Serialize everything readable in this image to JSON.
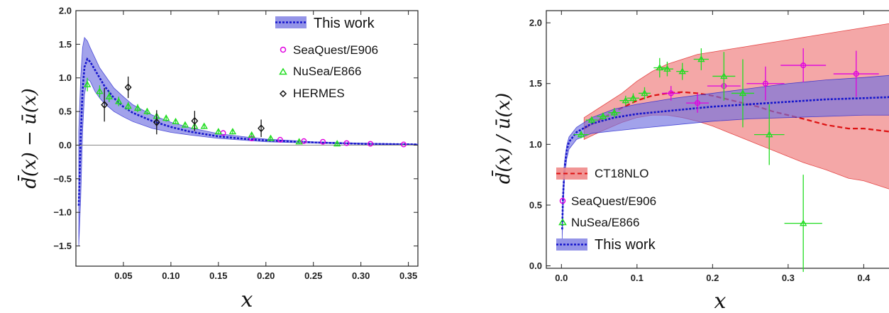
{
  "colors": {
    "band": "#7070e0",
    "line": "#1515cc",
    "ct18_band": "#f08a8a",
    "ct18_line": "#dd1111",
    "seaquest": "#e000e0",
    "nusea": "#22dd22",
    "hermes": "#111111",
    "zero": "#888888"
  },
  "chart_data": [
    {
      "type": "line",
      "xlabel": "x",
      "ylabel": "d̄(x) − ū(x)",
      "xlim": [
        0.0,
        0.36
      ],
      "ylim": [
        -1.8,
        2.0
      ],
      "xticks": [
        "0.05",
        "0.10",
        "0.15",
        "0.20",
        "0.25",
        "0.30",
        "0.35"
      ],
      "yticks": [
        "2.0",
        "1.5",
        "1.0",
        "0.5",
        "0.0",
        "−0.5",
        "−1.0",
        "−1.5"
      ],
      "legend_position": "top-right",
      "legend": [
        {
          "label": "This work",
          "marker": "band-line"
        },
        {
          "label": "SeaQuest/E906",
          "marker": "circle"
        },
        {
          "label": "NuSea/E866",
          "marker": "triangle"
        },
        {
          "label": "HERMES",
          "marker": "diamond"
        }
      ],
      "series": [
        {
          "name": "This work",
          "kind": "band",
          "x": [
            0.003,
            0.005,
            0.007,
            0.009,
            0.012,
            0.015,
            0.02,
            0.025,
            0.03,
            0.04,
            0.05,
            0.06,
            0.08,
            0.1,
            0.12,
            0.15,
            0.18,
            0.2,
            0.25,
            0.3,
            0.36
          ],
          "y": [
            -0.9,
            0.1,
            0.82,
            1.16,
            1.28,
            1.24,
            1.12,
            1.0,
            0.88,
            0.7,
            0.57,
            0.48,
            0.36,
            0.27,
            0.2,
            0.13,
            0.09,
            0.07,
            0.04,
            0.02,
            0.01
          ],
          "low": [
            -1.5,
            -0.8,
            0.2,
            0.75,
            0.98,
            0.95,
            0.8,
            0.7,
            0.62,
            0.5,
            0.42,
            0.35,
            0.25,
            0.19,
            0.15,
            0.1,
            0.07,
            0.05,
            0.03,
            0.015,
            0.005
          ],
          "high": [
            0.2,
            1.0,
            1.45,
            1.6,
            1.55,
            1.45,
            1.3,
            1.15,
            1.05,
            0.85,
            0.72,
            0.6,
            0.45,
            0.34,
            0.26,
            0.17,
            0.12,
            0.09,
            0.05,
            0.03,
            0.015
          ]
        },
        {
          "name": "SeaQuest/E906",
          "kind": "points",
          "marker": "circle",
          "x": [
            0.155,
            0.185,
            0.215,
            0.24,
            0.26,
            0.285,
            0.31,
            0.345
          ],
          "y": [
            0.18,
            0.1,
            0.08,
            0.06,
            0.05,
            0.03,
            0.02,
            0.01
          ]
        },
        {
          "name": "NuSea/E866",
          "kind": "points",
          "marker": "triangle",
          "x": [
            0.012,
            0.025,
            0.035,
            0.045,
            0.055,
            0.065,
            0.075,
            0.085,
            0.095,
            0.105,
            0.115,
            0.125,
            0.135,
            0.15,
            0.165,
            0.185,
            0.205,
            0.235,
            0.275
          ],
          "y": [
            0.9,
            0.8,
            0.72,
            0.65,
            0.58,
            0.55,
            0.5,
            0.43,
            0.4,
            0.35,
            0.3,
            0.28,
            0.28,
            0.2,
            0.2,
            0.15,
            0.1,
            0.05,
            0.02
          ],
          "err": [
            0.1,
            0.09,
            0.08,
            0.07,
            0.06,
            0.06,
            0.05,
            0.05,
            0.05,
            0.04,
            0.04,
            0.04,
            0.04,
            0.04,
            0.04,
            0.04,
            0.03,
            0.03,
            0.03
          ]
        },
        {
          "name": "HERMES",
          "kind": "points",
          "marker": "diamond",
          "x": [
            0.03,
            0.055,
            0.085,
            0.125,
            0.195
          ],
          "y": [
            0.6,
            0.86,
            0.34,
            0.36,
            0.25
          ],
          "err": [
            0.25,
            0.16,
            0.18,
            0.15,
            0.13
          ]
        }
      ]
    },
    {
      "type": "line",
      "xlabel": "x",
      "ylabel": "d̄(x) / ū(x)",
      "xlim": [
        -0.02,
        0.44
      ],
      "ylim": [
        -0.02,
        2.1
      ],
      "xticks": [
        "0.0",
        "0.1",
        "0.2",
        "0.3",
        "0.4"
      ],
      "yticks": [
        "0.0",
        "0.5",
        "1.0",
        "1.5",
        "2.0"
      ],
      "legend_position": "bottom-left",
      "legend": [
        {
          "label": "CT18NLO",
          "marker": "band-dash"
        },
        {
          "label": "SeaQuest/E906",
          "marker": "circle"
        },
        {
          "label": "NuSea/E866",
          "marker": "triangle"
        },
        {
          "label": "This work",
          "marker": "band-line"
        }
      ],
      "series": [
        {
          "name": "CT18NLO",
          "kind": "band",
          "x": [
            0.03,
            0.05,
            0.08,
            0.1,
            0.12,
            0.14,
            0.16,
            0.18,
            0.2,
            0.22,
            0.24,
            0.26,
            0.28,
            0.3,
            0.32,
            0.35,
            0.38,
            0.4,
            0.44
          ],
          "y": [
            1.13,
            1.2,
            1.3,
            1.36,
            1.4,
            1.42,
            1.43,
            1.42,
            1.4,
            1.37,
            1.34,
            1.31,
            1.27,
            1.24,
            1.21,
            1.16,
            1.13,
            1.13,
            1.1
          ],
          "low": [
            1.04,
            1.1,
            1.18,
            1.22,
            1.24,
            1.24,
            1.22,
            1.19,
            1.15,
            1.1,
            1.05,
            1.0,
            0.95,
            0.9,
            0.85,
            0.79,
            0.72,
            0.7,
            0.62
          ],
          "high": [
            1.22,
            1.3,
            1.42,
            1.52,
            1.6,
            1.66,
            1.7,
            1.74,
            1.76,
            1.78,
            1.8,
            1.82,
            1.84,
            1.86,
            1.88,
            1.91,
            1.94,
            1.96,
            2.0
          ]
        },
        {
          "name": "This work",
          "kind": "band",
          "x": [
            0.001,
            0.002,
            0.004,
            0.007,
            0.01,
            0.02,
            0.04,
            0.07,
            0.1,
            0.15,
            0.2,
            0.25,
            0.3,
            0.35,
            0.4,
            0.44
          ],
          "y": [
            0.3,
            0.55,
            0.8,
            0.95,
            1.02,
            1.1,
            1.17,
            1.22,
            1.25,
            1.28,
            1.31,
            1.33,
            1.35,
            1.37,
            1.38,
            1.39
          ],
          "low": [
            0.22,
            0.45,
            0.72,
            0.88,
            0.96,
            1.04,
            1.09,
            1.11,
            1.13,
            1.16,
            1.19,
            1.21,
            1.22,
            1.23,
            1.24,
            1.24
          ],
          "high": [
            0.35,
            0.62,
            0.85,
            0.99,
            1.06,
            1.14,
            1.22,
            1.29,
            1.33,
            1.38,
            1.42,
            1.46,
            1.5,
            1.53,
            1.55,
            1.57
          ]
        },
        {
          "name": "SeaQuest/E906",
          "kind": "points",
          "marker": "circle",
          "x": [
            0.145,
            0.18,
            0.215,
            0.27,
            0.32,
            0.39
          ],
          "y": [
            1.42,
            1.34,
            1.48,
            1.5,
            1.65,
            1.58
          ],
          "err": [
            0.06,
            0.08,
            0.12,
            0.14,
            0.14,
            0.19
          ],
          "xerr": [
            0.012,
            0.015,
            0.022,
            0.025,
            0.03,
            0.03
          ]
        },
        {
          "name": "NuSea/E866",
          "kind": "points",
          "marker": "triangle",
          "x": [
            0.026,
            0.04,
            0.055,
            0.07,
            0.085,
            0.095,
            0.11,
            0.13,
            0.14,
            0.16,
            0.185,
            0.215,
            0.24,
            0.275,
            0.32
          ],
          "y": [
            1.08,
            1.2,
            1.23,
            1.26,
            1.36,
            1.38,
            1.42,
            1.63,
            1.62,
            1.6,
            1.7,
            1.56,
            1.42,
            1.08,
            0.35
          ],
          "err": [
            0.03,
            0.03,
            0.03,
            0.04,
            0.04,
            0.04,
            0.05,
            0.08,
            0.06,
            0.07,
            0.09,
            0.2,
            0.28,
            0.25,
            0.4
          ],
          "xerr": [
            0.01,
            0.008,
            0.008,
            0.008,
            0.008,
            0.008,
            0.008,
            0.008,
            0.008,
            0.008,
            0.01,
            0.015,
            0.015,
            0.02,
            0.025
          ]
        }
      ]
    }
  ]
}
